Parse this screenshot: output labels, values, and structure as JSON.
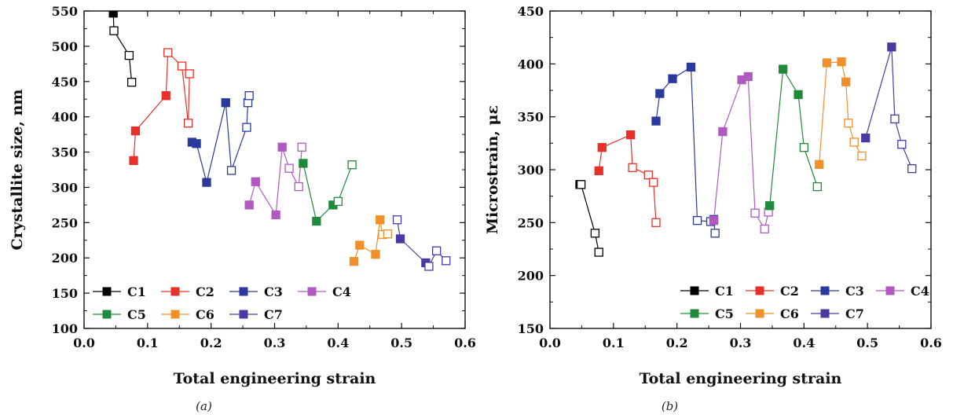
{
  "chart_data": [
    {
      "type": "line",
      "caption": "(a)",
      "xlabel": "Total engineering strain",
      "ylabel": "Crystallite size, nm",
      "xlim": [
        0.0,
        0.6
      ],
      "ylim": [
        100,
        550
      ],
      "xticks": [
        "0.0",
        "0.1",
        "0.2",
        "0.3",
        "0.4",
        "0.5",
        "0.6"
      ],
      "yticks": [
        "100",
        "150",
        "200",
        "250",
        "300",
        "350",
        "400",
        "450",
        "500",
        "550"
      ],
      "grid": false,
      "legend_position": "bottom-left",
      "series": [
        {
          "name": "C1",
          "color": "#000000",
          "x": [
            0.046,
            0.047,
            0.071,
            0.075
          ],
          "y": [
            547,
            522,
            487,
            449
          ],
          "filled": [
            true,
            false,
            false,
            false
          ]
        },
        {
          "name": "C2",
          "color": "#e8302a",
          "x": [
            0.078,
            0.081,
            0.129,
            0.132,
            0.154,
            0.164,
            0.166
          ],
          "y": [
            338,
            380,
            430,
            491,
            472,
            391,
            461
          ],
          "filled": [
            true,
            true,
            true,
            false,
            false,
            false,
            false
          ]
        },
        {
          "name": "C3",
          "color": "#2a3a9c",
          "x": [
            0.17,
            0.177,
            0.193,
            0.223,
            0.232,
            0.256,
            0.258,
            0.26
          ],
          "y": [
            364,
            362,
            307,
            420,
            324,
            385,
            420,
            430
          ],
          "filled": [
            true,
            true,
            true,
            true,
            false,
            false,
            false,
            false
          ]
        },
        {
          "name": "C4",
          "color": "#b05ac0",
          "x": [
            0.26,
            0.27,
            0.302,
            0.312,
            0.323,
            0.338,
            0.343
          ],
          "y": [
            275,
            308,
            261,
            357,
            327,
            301,
            357
          ],
          "filled": [
            true,
            true,
            true,
            true,
            false,
            false,
            false
          ]
        },
        {
          "name": "C5",
          "color": "#1f8a3a",
          "x": [
            0.345,
            0.366,
            0.392,
            0.4,
            0.422
          ],
          "y": [
            334,
            252,
            275,
            280,
            332
          ],
          "filled": [
            true,
            true,
            true,
            false,
            false
          ]
        },
        {
          "name": "C6",
          "color": "#f0902a",
          "x": [
            0.425,
            0.434,
            0.459,
            0.466,
            0.47,
            0.478
          ],
          "y": [
            195,
            218,
            205,
            254,
            233,
            234
          ],
          "filled": [
            true,
            true,
            true,
            true,
            false,
            false
          ]
        },
        {
          "name": "C7",
          "color": "#4a3aa0",
          "x": [
            0.493,
            0.498,
            0.538,
            0.543,
            0.555,
            0.57
          ],
          "y": [
            254,
            227,
            193,
            188,
            210,
            196
          ],
          "filled": [
            false,
            true,
            true,
            false,
            false,
            false
          ]
        }
      ]
    },
    {
      "type": "line",
      "caption": "(b)",
      "xlabel": "Total engineering strain",
      "ylabel": "Microstrain, με",
      "xlim": [
        0.0,
        0.6
      ],
      "ylim": [
        150,
        450
      ],
      "xticks": [
        "0.0",
        "0.1",
        "0.2",
        "0.3",
        "0.4",
        "0.5",
        "0.6"
      ],
      "yticks": [
        "150",
        "200",
        "250",
        "300",
        "350",
        "400",
        "450"
      ],
      "grid": false,
      "legend_position": "bottom-right",
      "series": [
        {
          "name": "C1",
          "color": "#000000",
          "x": [
            0.047,
            0.049,
            0.071,
            0.077
          ],
          "y": [
            286,
            286,
            240,
            222
          ],
          "filled": [
            true,
            false,
            false,
            false
          ]
        },
        {
          "name": "C2",
          "color": "#e8302a",
          "x": [
            0.077,
            0.082,
            0.127,
            0.13,
            0.155,
            0.163,
            0.167
          ],
          "y": [
            299,
            321,
            333,
            302,
            295,
            288,
            250
          ],
          "filled": [
            true,
            true,
            true,
            false,
            false,
            false,
            false
          ]
        },
        {
          "name": "C3",
          "color": "#2a3a9c",
          "x": [
            0.167,
            0.173,
            0.193,
            0.222,
            0.232,
            0.253,
            0.258,
            0.26
          ],
          "y": [
            346,
            372,
            386,
            397,
            252,
            251,
            253,
            240
          ],
          "filled": [
            true,
            true,
            true,
            true,
            false,
            false,
            false,
            false
          ]
        },
        {
          "name": "C4",
          "color": "#b05ac0",
          "x": [
            0.258,
            0.272,
            0.302,
            0.312,
            0.323,
            0.338,
            0.344
          ],
          "y": [
            252,
            336,
            385,
            388,
            259,
            244,
            260
          ],
          "filled": [
            true,
            true,
            true,
            true,
            false,
            false,
            false
          ]
        },
        {
          "name": "C5",
          "color": "#1f8a3a",
          "x": [
            0.346,
            0.367,
            0.391,
            0.4,
            0.421
          ],
          "y": [
            266,
            395,
            371,
            321,
            284
          ],
          "filled": [
            true,
            true,
            true,
            false,
            false
          ]
        },
        {
          "name": "C6",
          "color": "#f0902a",
          "x": [
            0.424,
            0.436,
            0.459,
            0.466,
            0.47,
            0.479,
            0.491
          ],
          "y": [
            305,
            401,
            402,
            383,
            344,
            326,
            313
          ],
          "filled": [
            true,
            true,
            true,
            true,
            false,
            false,
            false
          ]
        },
        {
          "name": "C7",
          "color": "#4a3aa0",
          "x": [
            0.497,
            0.538,
            0.543,
            0.554,
            0.57
          ],
          "y": [
            330,
            416,
            348,
            324,
            301
          ],
          "filled": [
            true,
            true,
            false,
            false,
            false
          ]
        }
      ]
    }
  ]
}
